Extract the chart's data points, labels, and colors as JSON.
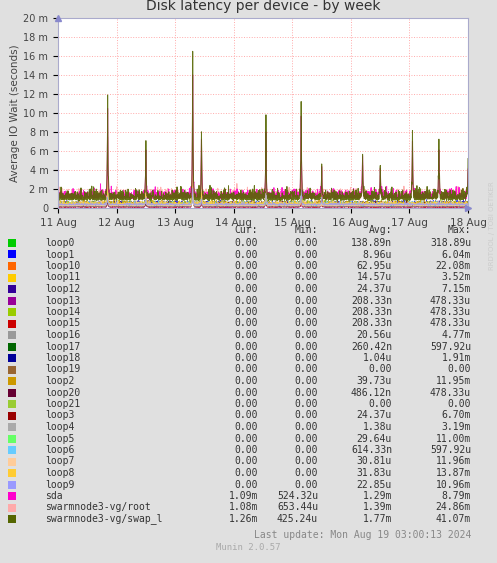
{
  "title": "Disk latency per device - by week",
  "ylabel": "Average IO Wait (seconds)",
  "background_color": "#e0e0e0",
  "plot_bg_color": "#ffffff",
  "grid_color": "#ffaaaa",
  "watermark": "RRDTOOL / TOBI OETIKER",
  "x_labels": [
    "11 Aug",
    "12 Aug",
    "13 Aug",
    "14 Aug",
    "15 Aug",
    "16 Aug",
    "17 Aug",
    "18 Aug"
  ],
  "y_tick_labels": [
    "0",
    "2 m",
    "4 m",
    "6 m",
    "8 m",
    "10 m",
    "12 m",
    "14 m",
    "16 m",
    "18 m",
    "20 m"
  ],
  "y_max": 0.02,
  "legend_entries": [
    {
      "label": "loop0",
      "color": "#00cc00"
    },
    {
      "label": "loop1",
      "color": "#0000ff"
    },
    {
      "label": "loop10",
      "color": "#ff6600"
    },
    {
      "label": "loop11",
      "color": "#ffcc00"
    },
    {
      "label": "loop12",
      "color": "#330099"
    },
    {
      "label": "loop13",
      "color": "#990099"
    },
    {
      "label": "loop14",
      "color": "#99cc00"
    },
    {
      "label": "loop15",
      "color": "#cc0000"
    },
    {
      "label": "loop16",
      "color": "#999999"
    },
    {
      "label": "loop17",
      "color": "#006600"
    },
    {
      "label": "loop18",
      "color": "#000099"
    },
    {
      "label": "loop19",
      "color": "#996633"
    },
    {
      "label": "loop2",
      "color": "#cc9900"
    },
    {
      "label": "loop20",
      "color": "#660033"
    },
    {
      "label": "loop21",
      "color": "#99cc33"
    },
    {
      "label": "loop3",
      "color": "#990000"
    },
    {
      "label": "loop4",
      "color": "#aaaaaa"
    },
    {
      "label": "loop5",
      "color": "#66ff66"
    },
    {
      "label": "loop6",
      "color": "#66ccff"
    },
    {
      "label": "loop7",
      "color": "#ffcc99"
    },
    {
      "label": "loop8",
      "color": "#ffcc33"
    },
    {
      "label": "loop9",
      "color": "#9999ff"
    },
    {
      "label": "sda",
      "color": "#ff00cc"
    },
    {
      "label": "swarmnode3-vg/root",
      "color": "#ffaaaa"
    },
    {
      "label": "swarmnode3-vg/swap_l",
      "color": "#556600"
    }
  ],
  "table_headers": [
    "Cur:",
    "Min:",
    "Avg:",
    "Max:"
  ],
  "table_data": [
    [
      "loop0",
      "0.00",
      "0.00",
      "138.89n",
      "318.89u"
    ],
    [
      "loop1",
      "0.00",
      "0.00",
      "8.96u",
      "6.04m"
    ],
    [
      "loop10",
      "0.00",
      "0.00",
      "62.95u",
      "22.08m"
    ],
    [
      "loop11",
      "0.00",
      "0.00",
      "14.57u",
      "3.52m"
    ],
    [
      "loop12",
      "0.00",
      "0.00",
      "24.37u",
      "7.15m"
    ],
    [
      "loop13",
      "0.00",
      "0.00",
      "208.33n",
      "478.33u"
    ],
    [
      "loop14",
      "0.00",
      "0.00",
      "208.33n",
      "478.33u"
    ],
    [
      "loop15",
      "0.00",
      "0.00",
      "208.33n",
      "478.33u"
    ],
    [
      "loop16",
      "0.00",
      "0.00",
      "20.56u",
      "4.77m"
    ],
    [
      "loop17",
      "0.00",
      "0.00",
      "260.42n",
      "597.92u"
    ],
    [
      "loop18",
      "0.00",
      "0.00",
      "1.04u",
      "1.91m"
    ],
    [
      "loop19",
      "0.00",
      "0.00",
      "0.00",
      "0.00"
    ],
    [
      "loop2",
      "0.00",
      "0.00",
      "39.73u",
      "11.95m"
    ],
    [
      "loop20",
      "0.00",
      "0.00",
      "486.12n",
      "478.33u"
    ],
    [
      "loop21",
      "0.00",
      "0.00",
      "0.00",
      "0.00"
    ],
    [
      "loop3",
      "0.00",
      "0.00",
      "24.37u",
      "6.70m"
    ],
    [
      "loop4",
      "0.00",
      "0.00",
      "1.38u",
      "3.19m"
    ],
    [
      "loop5",
      "0.00",
      "0.00",
      "29.64u",
      "11.00m"
    ],
    [
      "loop6",
      "0.00",
      "0.00",
      "614.33n",
      "597.92u"
    ],
    [
      "loop7",
      "0.00",
      "0.00",
      "30.81u",
      "11.96m"
    ],
    [
      "loop8",
      "0.00",
      "0.00",
      "31.83u",
      "13.87m"
    ],
    [
      "loop9",
      "0.00",
      "0.00",
      "22.85u",
      "10.96m"
    ],
    [
      "sda",
      "1.09m",
      "524.32u",
      "1.29m",
      "8.79m"
    ],
    [
      "swarmnode3-vg/root",
      "1.08m",
      "653.44u",
      "1.39m",
      "24.86m"
    ],
    [
      "swarmnode3-vg/swap_l",
      "1.26m",
      "425.24u",
      "1.77m",
      "41.07m"
    ]
  ],
  "footer": "Last update: Mon Aug 19 03:00:13 2024",
  "munin_version": "Munin 2.0.57"
}
